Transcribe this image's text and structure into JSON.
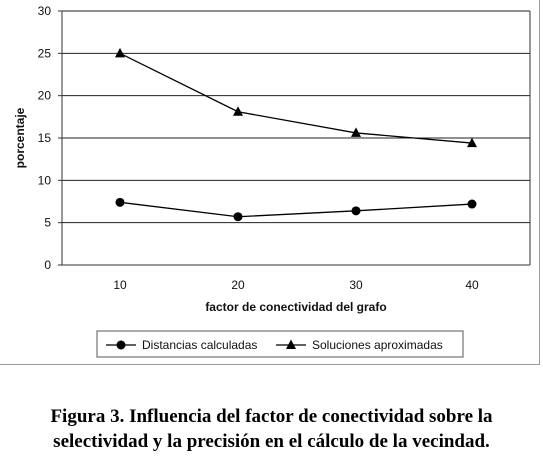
{
  "chart_data": {
    "type": "line",
    "title": "",
    "xlabel": "factor de conectividad del grafo",
    "ylabel": "porcentaje",
    "x": [
      10,
      20,
      30,
      40
    ],
    "ylim": [
      0,
      30
    ],
    "yticks": [
      0,
      5,
      10,
      15,
      20,
      25,
      30
    ],
    "grid": true,
    "legend_position": "bottom",
    "series": [
      {
        "name": "Distancias calculadas",
        "marker": "circle",
        "values": [
          7.4,
          5.7,
          6.4,
          7.2
        ]
      },
      {
        "name": "Soluciones aproximadas",
        "marker": "triangle",
        "values": [
          25.0,
          18.1,
          15.6,
          14.4
        ]
      }
    ]
  },
  "caption": {
    "line1": "Figura 3. Influencia del factor de conectividad sobre la",
    "line2": "selectividad y la precisión en el cálculo de la vecindad."
  }
}
